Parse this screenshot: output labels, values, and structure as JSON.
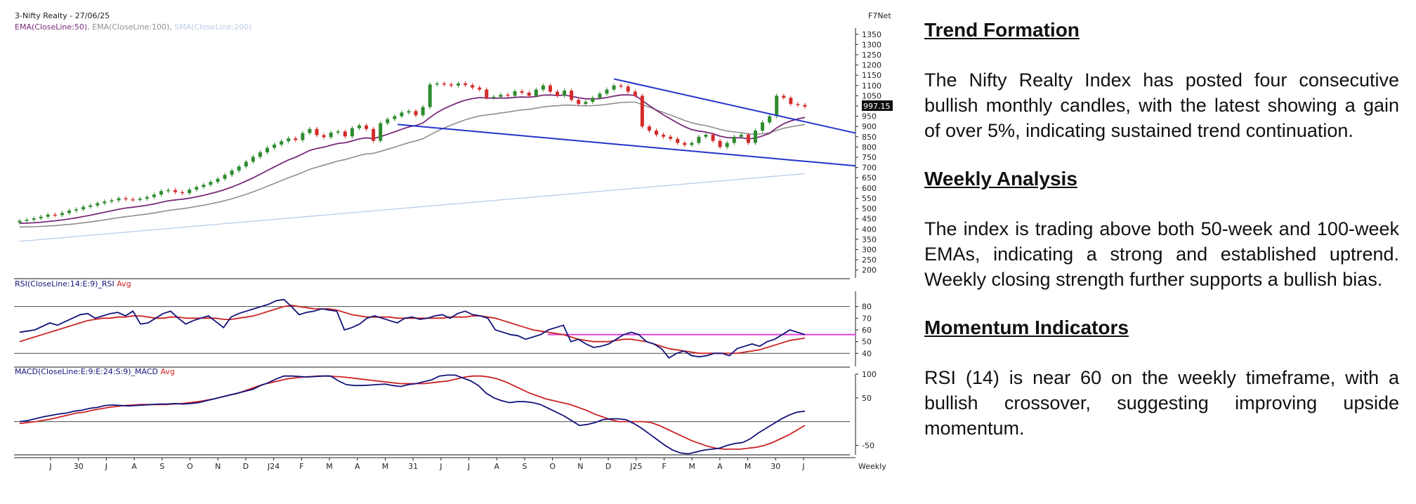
{
  "chart_data": [
    {
      "type": "candlestick",
      "header": "3-Nifty Realty - 27/06/25",
      "source": "F7Net",
      "legend": [
        {
          "name": "EMA(CloseLine:50)",
          "color": "#7a2a7a"
        },
        {
          "name": "EMA(CloseLine:100)",
          "color": "#8f8f8f"
        },
        {
          "name": "SMA(CloseLine:200)",
          "color": "#b9cde6"
        }
      ],
      "last_price": "997.15",
      "ylim": [
        175,
        1380
      ],
      "yticks": [
        "1350",
        "1300",
        "1250",
        "1200",
        "1150",
        "1100",
        "1050",
        "1000",
        "950",
        "900",
        "850",
        "800",
        "750",
        "700",
        "650",
        "600",
        "550",
        "500",
        "450",
        "400",
        "350",
        "300",
        "250",
        "200"
      ],
      "colors": {
        "up": "#2e8b2e",
        "down": "#d42a2a",
        "trend": "#2433cc"
      },
      "closes": [
        440,
        445,
        452,
        460,
        470,
        468,
        478,
        490,
        496,
        508,
        515,
        526,
        534,
        540,
        550,
        545,
        542,
        548,
        556,
        568,
        585,
        590,
        580,
        575,
        592,
        605,
        616,
        630,
        645,
        664,
        685,
        705,
        728,
        752,
        774,
        796,
        812,
        828,
        842,
        834,
        868,
        888,
        858,
        848,
        870,
        876,
        852,
        892,
        905,
        888,
        830,
        916,
        936,
        950,
        968,
        975,
        955,
        995,
        1105,
        1110,
        1105,
        1100,
        1110,
        1102,
        1090,
        1080,
        1040,
        1045,
        1055,
        1050,
        1072,
        1065,
        1050,
        1080,
        1100,
        1070,
        1050,
        1075,
        1030,
        1010,
        1020,
        1040,
        1060,
        1080,
        1100,
        1095,
        1070,
        1050,
        900,
        880,
        860,
        850,
        840,
        820,
        810,
        820,
        850,
        860,
        830,
        800,
        820,
        850,
        860,
        820,
        880,
        920,
        950,
        1050,
        1040,
        1010,
        1005,
        997
      ]
    },
    {
      "type": "line",
      "title": "RSI(CloseLine:14:E:9)_RSI",
      "avg_label": "Avg",
      "ylim": [
        30,
        90
      ],
      "yticks": [
        "80",
        "70",
        "60",
        "50",
        "40"
      ],
      "reference_level": 56,
      "series": [
        {
          "name": "RSI",
          "color": "#13137a",
          "values": [
            58,
            59,
            60,
            63,
            66,
            64,
            67,
            70,
            73,
            74,
            70,
            72,
            74,
            75,
            72,
            76,
            65,
            66,
            70,
            74,
            76,
            70,
            65,
            68,
            70,
            72,
            67,
            62,
            71,
            74,
            76,
            78,
            80,
            82,
            85,
            86,
            80,
            73,
            75,
            76,
            78,
            77,
            76,
            60,
            62,
            65,
            70,
            72,
            70,
            68,
            66,
            70,
            71,
            69,
            70,
            72,
            73,
            70,
            74,
            76,
            73,
            72,
            70,
            60,
            58,
            56,
            55,
            52,
            54,
            56,
            60,
            62,
            64,
            50,
            52,
            48,
            45,
            46,
            48,
            52,
            56,
            58,
            56,
            50,
            48,
            44,
            36,
            40,
            42,
            38,
            37,
            38,
            40,
            40,
            38,
            44,
            46,
            48,
            46,
            50,
            52,
            56,
            60,
            58,
            56
          ]
        },
        {
          "name": "Avg",
          "color": "#cc2222",
          "values": [
            50,
            52,
            54,
            56,
            58,
            60,
            62,
            64,
            66,
            68,
            69,
            70,
            70,
            71,
            71,
            72,
            72,
            71,
            70,
            70,
            71,
            71,
            70,
            70,
            70,
            70,
            70,
            69,
            69,
            70,
            71,
            72,
            74,
            76,
            78,
            80,
            81,
            80,
            79,
            78,
            78,
            78,
            77,
            75,
            73,
            72,
            71,
            71,
            71,
            71,
            70,
            70,
            70,
            70,
            70,
            70,
            70,
            71,
            71,
            71,
            72,
            72,
            71,
            70,
            68,
            66,
            64,
            62,
            60,
            59,
            58,
            57,
            56,
            54,
            52,
            51,
            50,
            50,
            50,
            51,
            52,
            52,
            51,
            50,
            48,
            46,
            44,
            43,
            42,
            41,
            40,
            40,
            40,
            40,
            40,
            40,
            41,
            42,
            43,
            45,
            47,
            49,
            51,
            52,
            53
          ]
        }
      ]
    },
    {
      "type": "line",
      "title": "MACD(CloseLine:E:9:E:24:S:9)_MACD",
      "avg_label": "Avg",
      "ylim": [
        -70,
        100
      ],
      "yticks": [
        "100",
        "50",
        "-50"
      ],
      "zero_line": 0,
      "series": [
        {
          "name": "MACD",
          "color": "#13137a",
          "values": [
            0,
            2,
            6,
            10,
            13,
            16,
            18,
            22,
            24,
            28,
            30,
            34,
            35,
            34,
            33,
            34,
            35,
            36,
            37,
            37,
            38,
            37,
            38,
            40,
            44,
            48,
            52,
            56,
            60,
            64,
            68,
            76,
            82,
            90,
            96,
            96,
            95,
            94,
            95,
            96,
            96,
            86,
            78,
            76,
            76,
            77,
            78,
            79,
            76,
            74,
            78,
            80,
            84,
            88,
            96,
            98,
            98,
            92,
            86,
            76,
            60,
            50,
            44,
            40,
            42,
            42,
            40,
            36,
            28,
            20,
            12,
            2,
            -8,
            -6,
            -2,
            4,
            6,
            6,
            4,
            -4,
            -14,
            -26,
            -38,
            -50,
            -60,
            -66,
            -68,
            -64,
            -60,
            -58,
            -56,
            -50,
            -46,
            -44,
            -36,
            -24,
            -14,
            -4,
            6,
            14,
            20,
            22
          ]
        },
        {
          "name": "Avg",
          "color": "#cc2222",
          "values": [
            -4,
            -2,
            0,
            3,
            6,
            10,
            14,
            18,
            20,
            24,
            27,
            30,
            32,
            34,
            35,
            36,
            36,
            36,
            36,
            37,
            38,
            40,
            42,
            45,
            48,
            52,
            56,
            60,
            66,
            72,
            78,
            82,
            86,
            90,
            92,
            94,
            95,
            96,
            96,
            95,
            94,
            92,
            90,
            88,
            86,
            84,
            82,
            80,
            80,
            80,
            80,
            82,
            84,
            86,
            90,
            94,
            96,
            96,
            94,
            90,
            84,
            76,
            68,
            60,
            54,
            48,
            44,
            40,
            36,
            30,
            24,
            16,
            10,
            4,
            0,
            0,
            0,
            0,
            -2,
            -8,
            -16,
            -24,
            -32,
            -40,
            -46,
            -52,
            -56,
            -58,
            -58,
            -58,
            -56,
            -54,
            -50,
            -44,
            -36,
            -28,
            -18,
            -8
          ]
        }
      ]
    }
  ],
  "x_labels": [
    "J",
    "30",
    "J",
    "A",
    "S",
    "O",
    "N",
    "D",
    "J24",
    "F",
    "M",
    "A",
    "M",
    "31",
    "J",
    "J",
    "A",
    "S",
    "O",
    "N",
    "D",
    "J25",
    "F",
    "M",
    "A",
    "M",
    "30",
    "J"
  ],
  "x_axis_unit": "Weekly",
  "commentary": {
    "trend_title": "Trend Formation",
    "trend_text": "The Nifty Realty Index has posted four consecutive bullish monthly candles, with the latest showing a gain of over 5%, indicating sustained trend continuation.",
    "weekly_title": "Weekly Analysis",
    "weekly_text": "The index is trading above both 50-week and 100-week EMAs, indicating a strong and established uptrend. Weekly closing strength further supports a bullish bias.",
    "momentum_title": "Momentum Indicators",
    "momentum_text": "RSI (14) is near 60 on the weekly timeframe, with a bullish crossover, suggesting improving upside momentum."
  }
}
